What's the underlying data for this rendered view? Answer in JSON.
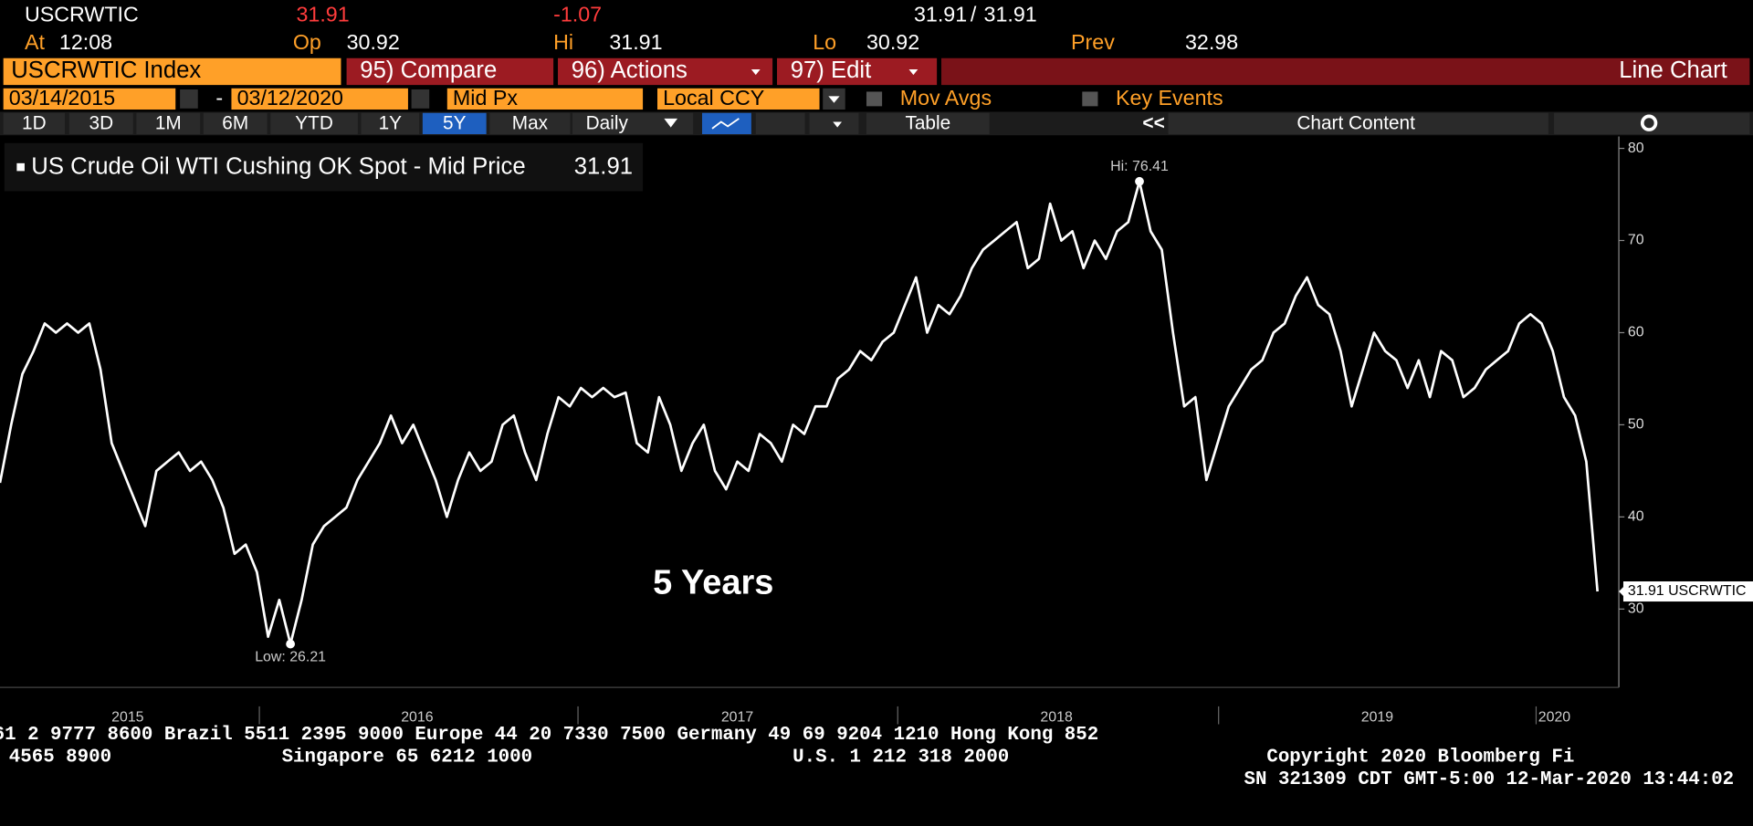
{
  "header": {
    "ticker": "USCRWTIC",
    "last": "31.91",
    "change": "-1.07",
    "bid": "31.91",
    "ask": "31.91",
    "at_label": "At",
    "at_value": "12:08",
    "open_label": "Op",
    "open_value": "30.92",
    "high_label": "Hi",
    "high_value": "31.91",
    "low_label": "Lo",
    "low_value": "30.92",
    "prev_label": "Prev",
    "prev_value": "32.98"
  },
  "toolbar": {
    "security": "USCRWTIC Index",
    "compare": "95) Compare",
    "actions": "96) Actions",
    "edit": "97) Edit",
    "view": "Line Chart",
    "start_date": "03/14/2015",
    "date_sep": "-",
    "end_date": "03/12/2020",
    "field": "Mid Px",
    "currency": "Local CCY",
    "mov_avgs": "Mov Avgs",
    "key_events": "Key Events",
    "periods": [
      "1D",
      "3D",
      "1M",
      "6M",
      "YTD",
      "1Y",
      "5Y",
      "Max"
    ],
    "frequency": "Daily",
    "table": "Table",
    "collapse": "<<",
    "chart_content": "Chart Content"
  },
  "chart_data": {
    "type": "line",
    "annotation": "5 Years",
    "high_label": "Hi: 76.41",
    "low_label": "Low: 26.21",
    "last_label": "31.91 USCRWTIC",
    "xlim": [
      2015.19,
      2020.262
    ],
    "ylim": [
      21.5,
      81.3
    ],
    "yticks": [
      30,
      40,
      50,
      60,
      70,
      80
    ],
    "xticks": [
      {
        "value": 2015.59,
        "label": "2015"
      },
      {
        "value": 2016.497,
        "label": "2016"
      },
      {
        "value": 2017.5,
        "label": "2017"
      },
      {
        "value": 2018.5,
        "label": "2018"
      },
      {
        "value": 2019.505,
        "label": "2019"
      },
      {
        "value": 2020.06,
        "label": "2020"
      }
    ],
    "x": [
      2015.19,
      2015.225,
      2015.26,
      2015.295,
      2015.33,
      2015.365,
      2015.4,
      2015.435,
      2015.47,
      2015.505,
      2015.54,
      2015.575,
      2015.61,
      2015.645,
      2015.68,
      2015.715,
      2015.75,
      2015.785,
      2015.82,
      2015.855,
      2015.89,
      2015.925,
      2015.96,
      2015.995,
      2016.03,
      2016.065,
      2016.1,
      2016.135,
      2016.17,
      2016.205,
      2016.24,
      2016.275,
      2016.31,
      2016.345,
      2016.38,
      2016.415,
      2016.45,
      2016.485,
      2016.52,
      2016.555,
      2016.59,
      2016.625,
      2016.66,
      2016.695,
      2016.73,
      2016.765,
      2016.8,
      2016.835,
      2016.87,
      2016.905,
      2016.94,
      2016.975,
      2017.01,
      2017.045,
      2017.08,
      2017.115,
      2017.15,
      2017.185,
      2017.22,
      2017.255,
      2017.29,
      2017.325,
      2017.36,
      2017.395,
      2017.43,
      2017.465,
      2017.5,
      2017.535,
      2017.57,
      2017.605,
      2017.64,
      2017.675,
      2017.71,
      2017.745,
      2017.78,
      2017.815,
      2017.85,
      2017.885,
      2017.92,
      2017.955,
      2017.99,
      2018.025,
      2018.06,
      2018.095,
      2018.13,
      2018.165,
      2018.2,
      2018.235,
      2018.27,
      2018.305,
      2018.34,
      2018.375,
      2018.41,
      2018.445,
      2018.48,
      2018.515,
      2018.55,
      2018.585,
      2018.62,
      2018.655,
      2018.69,
      2018.725,
      2018.76,
      2018.795,
      2018.83,
      2018.865,
      2018.9,
      2018.935,
      2018.97,
      2019.005,
      2019.04,
      2019.075,
      2019.11,
      2019.145,
      2019.18,
      2019.215,
      2019.25,
      2019.285,
      2019.32,
      2019.355,
      2019.39,
      2019.425,
      2019.46,
      2019.495,
      2019.53,
      2019.565,
      2019.6,
      2019.635,
      2019.67,
      2019.705,
      2019.74,
      2019.775,
      2019.81,
      2019.845,
      2019.88,
      2019.915,
      2019.95,
      2019.985,
      2020.02,
      2020.055,
      2020.09,
      2020.125,
      2020.16,
      2020.195
    ],
    "series": [
      {
        "name": "US Crude Oil WTI Cushing OK Spot - Mid Price",
        "price_label": "31.91",
        "color": "#ffffff",
        "values": [
          43.7,
          50,
          55.5,
          58,
          61,
          60,
          61,
          60,
          61,
          56,
          48,
          45,
          42,
          39,
          45,
          46,
          47,
          45,
          46,
          44,
          41,
          36,
          37,
          34,
          27,
          31,
          26.21,
          31,
          37,
          39,
          40,
          41,
          44,
          46,
          48,
          51,
          48,
          50,
          47,
          44,
          40,
          44,
          47,
          45,
          46,
          50,
          51,
          47,
          44,
          49,
          53,
          52,
          54,
          53,
          54,
          53,
          53.5,
          48,
          47,
          53,
          50,
          45,
          48,
          50,
          45,
          43,
          46,
          45,
          49,
          48,
          46,
          50,
          49,
          52,
          52,
          55,
          56,
          58,
          57,
          59,
          60,
          63,
          66,
          60,
          63,
          62,
          64,
          67,
          69,
          70,
          71,
          72,
          67,
          68,
          74,
          70,
          71,
          67,
          70,
          68,
          71,
          72,
          76.41,
          71,
          69,
          60,
          52,
          53,
          44,
          48,
          52,
          54,
          56,
          57,
          60,
          61,
          64,
          66,
          63,
          62,
          58,
          52,
          56,
          60,
          58,
          57,
          54,
          57,
          53,
          58,
          57,
          53,
          54,
          56,
          57,
          58,
          61,
          62,
          61,
          58,
          53,
          51,
          46,
          31.91
        ]
      }
    ]
  },
  "footer": {
    "line1": "61 2 9777 8600 Brazil 5511 2395 9000 Europe 44 20 7330 7500 Germany 49 69 9204 1210 Hong Kong 852",
    "line2a": "4565 8900",
    "line2b": "Singapore 65 6212 1000",
    "line2c": "U.S. 1 212 318 2000",
    "line2d": "Copyright 2020 Bloomberg Fi",
    "line3": "SN 321309 CDT  GMT-5:00 12-Mar-2020 13:44:02"
  }
}
